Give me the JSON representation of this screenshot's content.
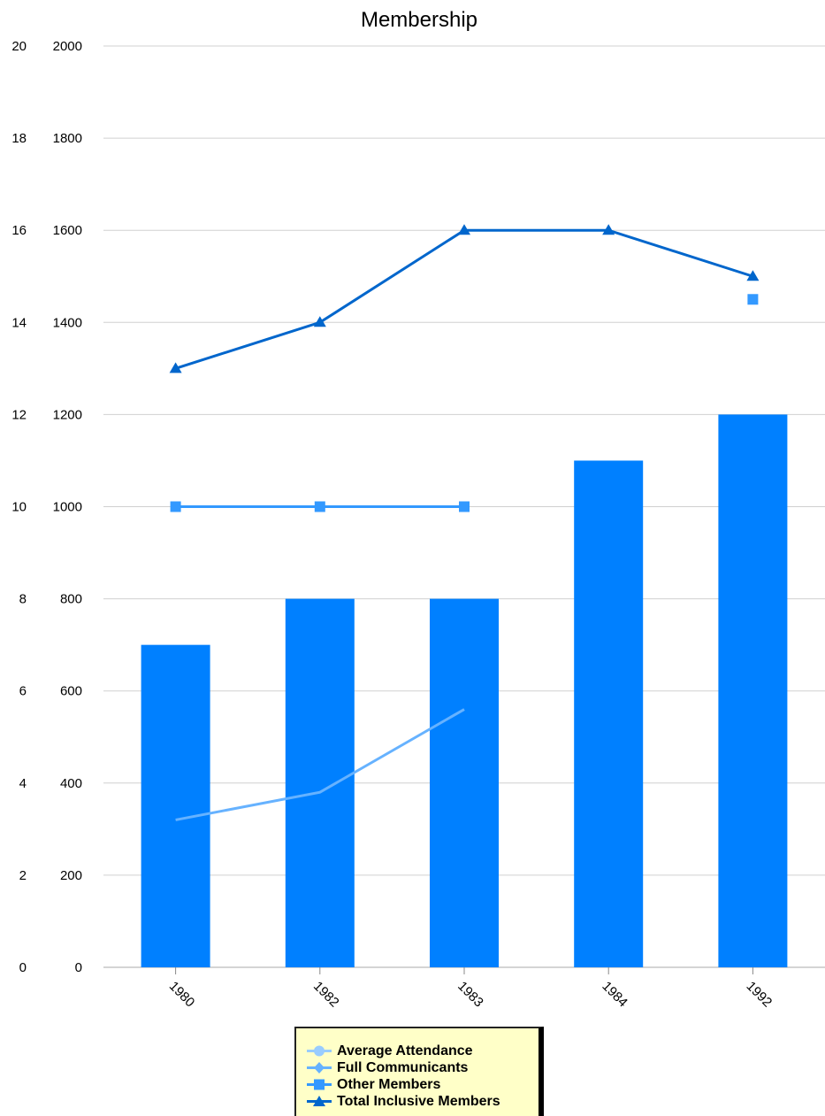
{
  "chart_data": {
    "type": "bar",
    "title": "Membership",
    "categories": [
      "1980",
      "1982",
      "1983",
      "1984",
      "1992"
    ],
    "y_left_ticks": [
      "0",
      "2",
      "4",
      "6",
      "8",
      "10",
      "12",
      "14",
      "16",
      "18",
      "20"
    ],
    "y_right_ticks": [
      "0",
      "200",
      "400",
      "600",
      "800",
      "1000",
      "1200",
      "1400",
      "1600",
      "1800",
      "2000"
    ],
    "ylim": [
      0,
      2000
    ],
    "grid": true,
    "legend_position": "bottom",
    "series": [
      {
        "name": "Average Attendance",
        "type": "line",
        "color": "#66b2ff",
        "values": [
          320,
          380,
          560,
          null,
          null
        ]
      },
      {
        "name": "Full Communicants",
        "type": "bar",
        "color": "#0080ff",
        "values": [
          700,
          800,
          800,
          1100,
          1200
        ]
      },
      {
        "name": "Other Members",
        "type": "line",
        "color": "#3399ff",
        "marker": "square",
        "values": [
          1000,
          1000,
          1000,
          null,
          1450
        ]
      },
      {
        "name": "Total Inclusive Members",
        "type": "line",
        "color": "#0066cc",
        "marker": "triangle",
        "values": [
          1300,
          1400,
          1600,
          1600,
          1500
        ]
      }
    ],
    "legend": [
      {
        "label": "Average Attendance",
        "marker": "circle",
        "color": "#99ccff"
      },
      {
        "label": "Full Communicants",
        "marker": "diamond",
        "color": "#66b2ff"
      },
      {
        "label": "Other Members",
        "marker": "square",
        "color": "#3399ff"
      },
      {
        "label": "Total Inclusive Members",
        "marker": "triangle",
        "color": "#0066cc"
      }
    ]
  }
}
